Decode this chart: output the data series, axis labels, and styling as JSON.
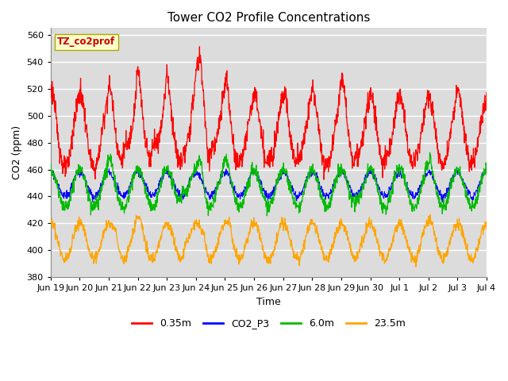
{
  "title": "Tower CO2 Profile Concentrations",
  "xlabel": "Time",
  "ylabel": "CO2 (ppm)",
  "ylim": [
    380,
    565
  ],
  "yticks": [
    380,
    400,
    420,
    440,
    460,
    480,
    500,
    520,
    540,
    560
  ],
  "plot_bg_color": "#dcdcdc",
  "grid_color": "#ffffff",
  "legend_label": "TZ_co2prof",
  "legend_box_color": "#ffffcc",
  "legend_box_edge": "#cccc00",
  "colors": {
    "0.35m": "#ff0000",
    "CO2_P3": "#0000ff",
    "6.0m": "#00bb00",
    "23.5m": "#ffa500"
  },
  "xtick_labels": [
    "Jun 19",
    "Jun 20",
    "Jun 21",
    "Jun 22",
    "Jun 23",
    "Jun 24",
    "Jun 25",
    "Jun 26",
    "Jun 27",
    "Jun 28",
    "Jun 29",
    "Jun 30",
    "Jul 1",
    "Jul 2",
    "Jul 3",
    "Jul 4"
  ],
  "num_points": 1500
}
